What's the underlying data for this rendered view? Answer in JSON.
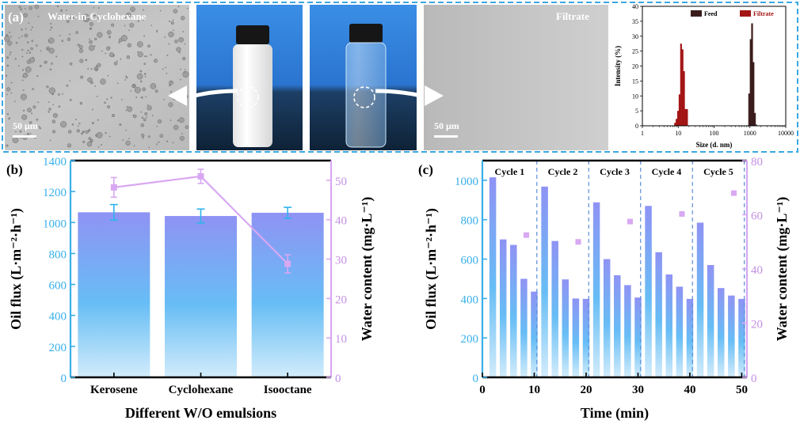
{
  "panel_a": {
    "label": "(a)",
    "micrograph_feed": {
      "title": "Water-in-Cyclohexane",
      "scale": "50 μm"
    },
    "micrograph_filtrate": {
      "title": "Filtrate",
      "scale": "50 μm"
    }
  },
  "panel_b": {
    "label": "(b)"
  },
  "panel_c": {
    "label": "(c)"
  },
  "chart_data": [
    {
      "id": "dls",
      "type": "bar",
      "xlabel": "Size (d. nm)",
      "ylabel": "Intensity (%)",
      "xscale": "log",
      "xlim": [
        1,
        10000
      ],
      "ylim": [
        0,
        40
      ],
      "xticks": [
        1,
        10,
        100,
        1000,
        10000
      ],
      "xtick_labels": [
        "1",
        "10",
        "100",
        "1000",
        "10000"
      ],
      "yticks": [
        0,
        5,
        10,
        15,
        20,
        25,
        30,
        35,
        40
      ],
      "legend": "top",
      "series": [
        {
          "name": "Feed",
          "color": "#3b1c1c",
          "x": [
            955,
            1050,
            1150,
            1260,
            1380,
            1500
          ],
          "y": [
            10.8,
            29.0,
            34.3,
            21.3,
            4.3,
            0.4
          ]
        },
        {
          "name": "Filtrate",
          "color": "#a31515",
          "x": [
            8.2,
            9.0,
            9.9,
            10.9,
            12.0,
            13.2,
            14.5,
            16.0,
            17.6
          ],
          "y": [
            1.0,
            2.3,
            5.0,
            10.5,
            27.5,
            25.6,
            18.3,
            5.6,
            5.6
          ]
        }
      ]
    },
    {
      "id": "b",
      "type": "bar",
      "xlabel": "Different W/O emulsions",
      "ylabel": "Oil flux (L·m⁻²·h⁻¹)",
      "y2label": "Water content (mg·L⁻¹)",
      "categories": [
        "Kerosene",
        "Cyclohexane",
        "Isooctane"
      ],
      "ylim": [
        0,
        1400
      ],
      "yticks": [
        0,
        200,
        400,
        600,
        800,
        1000,
        1200,
        1400
      ],
      "y2lim": [
        0,
        55
      ],
      "y2ticks": [
        0,
        10,
        20,
        30,
        40,
        50
      ],
      "series": [
        {
          "name": "Oil flux",
          "axis": "left",
          "kind": "bar",
          "color": "#8f93f4",
          "values": [
            1066,
            1042,
            1063
          ],
          "errors": [
            50,
            45,
            35
          ]
        },
        {
          "name": "Water content",
          "axis": "right",
          "kind": "line",
          "color": "#d8a8f2",
          "values": [
            48.2,
            51.0,
            28.8
          ],
          "errors": [
            2.5,
            1.8,
            2.3
          ]
        }
      ]
    },
    {
      "id": "c",
      "type": "bar",
      "xlabel": "Time (min)",
      "ylabel": "Oil flux (L·m⁻²·h⁻¹)",
      "y2label": "Water content (mg·L⁻¹)",
      "xlim": [
        0,
        51
      ],
      "xticks": [
        0,
        10,
        20,
        30,
        40,
        50
      ],
      "ylim": [
        0,
        1100
      ],
      "yticks": [
        0,
        200,
        400,
        600,
        800,
        1000
      ],
      "y2lim": [
        0,
        80
      ],
      "y2ticks": [
        0,
        20,
        40,
        60,
        80
      ],
      "cycles": [
        "Cycle 1",
        "Cycle 2",
        "Cycle 3",
        "Cycle 4",
        "Cycle 5"
      ],
      "cycle_boundaries": [
        10.5,
        20.5,
        30.5,
        40.5,
        50.5
      ],
      "bars": {
        "x": [
          2,
          4,
          6,
          8,
          10,
          12,
          14,
          16,
          18,
          20,
          22,
          24,
          26,
          28,
          30,
          32,
          34,
          36,
          38,
          40,
          42,
          44,
          46,
          48,
          50
        ],
        "values": [
          1015,
          700,
          672,
          500,
          435,
          968,
          692,
          497,
          400,
          398,
          888,
          600,
          518,
          468,
          405,
          870,
          635,
          522,
          460,
          398,
          785,
          570,
          453,
          415,
          398
        ]
      },
      "water_content": {
        "x": [
          10,
          20,
          30,
          40,
          50
        ],
        "values": [
          52.5,
          50.0,
          57.5,
          60.3,
          68.0
        ]
      }
    }
  ]
}
